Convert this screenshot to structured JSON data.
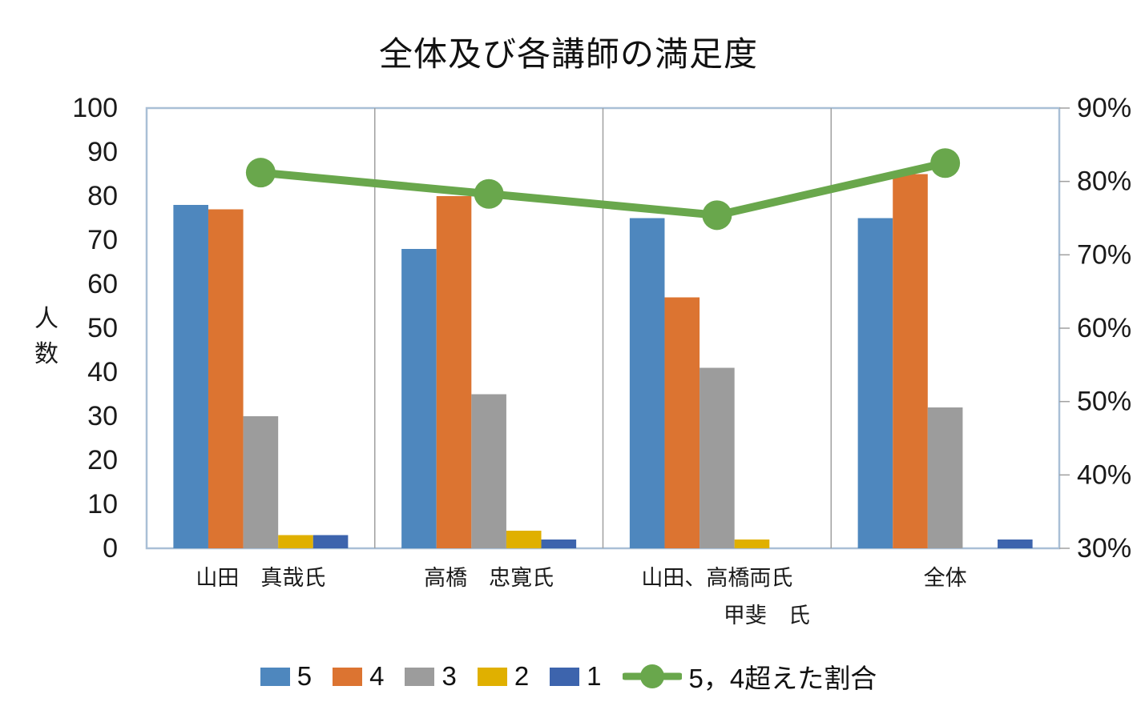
{
  "chart_data": {
    "type": "combo-bar-line",
    "title": "全体及び各講師の満足度",
    "categories": [
      [
        "山田　真哉氏"
      ],
      [
        "高橋　忠寛氏"
      ],
      [
        "山田、高橋両氏",
        "甲斐　氏"
      ],
      [
        "全体"
      ]
    ],
    "left_axis": {
      "label": "人数",
      "label_chars": [
        "人",
        "数"
      ],
      "min": 0,
      "max": 100,
      "step": 10,
      "ticks": [
        "0",
        "10",
        "20",
        "30",
        "40",
        "50",
        "60",
        "70",
        "80",
        "90",
        "100"
      ]
    },
    "right_axis": {
      "min": 30,
      "max": 90,
      "step": 10,
      "ticks": [
        "30%",
        "40%",
        "50%",
        "60%",
        "70%",
        "80%",
        "90%"
      ]
    },
    "bar_series": [
      {
        "name": "5",
        "color": "#4E87BE",
        "values": [
          78,
          68,
          75,
          75
        ]
      },
      {
        "name": "4",
        "color": "#DC7431",
        "values": [
          77,
          80,
          57,
          85
        ]
      },
      {
        "name": "3",
        "color": "#9C9C9C",
        "values": [
          30,
          35,
          41,
          32
        ]
      },
      {
        "name": "2",
        "color": "#E0B000",
        "values": [
          3,
          4,
          2,
          0
        ]
      },
      {
        "name": "1",
        "color": "#3D64AD",
        "values": [
          3,
          2,
          0,
          2
        ]
      }
    ],
    "line_series": {
      "name": "5，4超えた割合",
      "color": "#69A74C",
      "axis": "right",
      "values_percent": [
        81.2,
        78.3,
        75.4,
        82.5
      ]
    },
    "legend_position": "bottom",
    "gridlines": false,
    "plot_border_color": "#A9BFD6",
    "category_separator_color": "#A0A0A0",
    "text_color": "#1a1a1a"
  }
}
